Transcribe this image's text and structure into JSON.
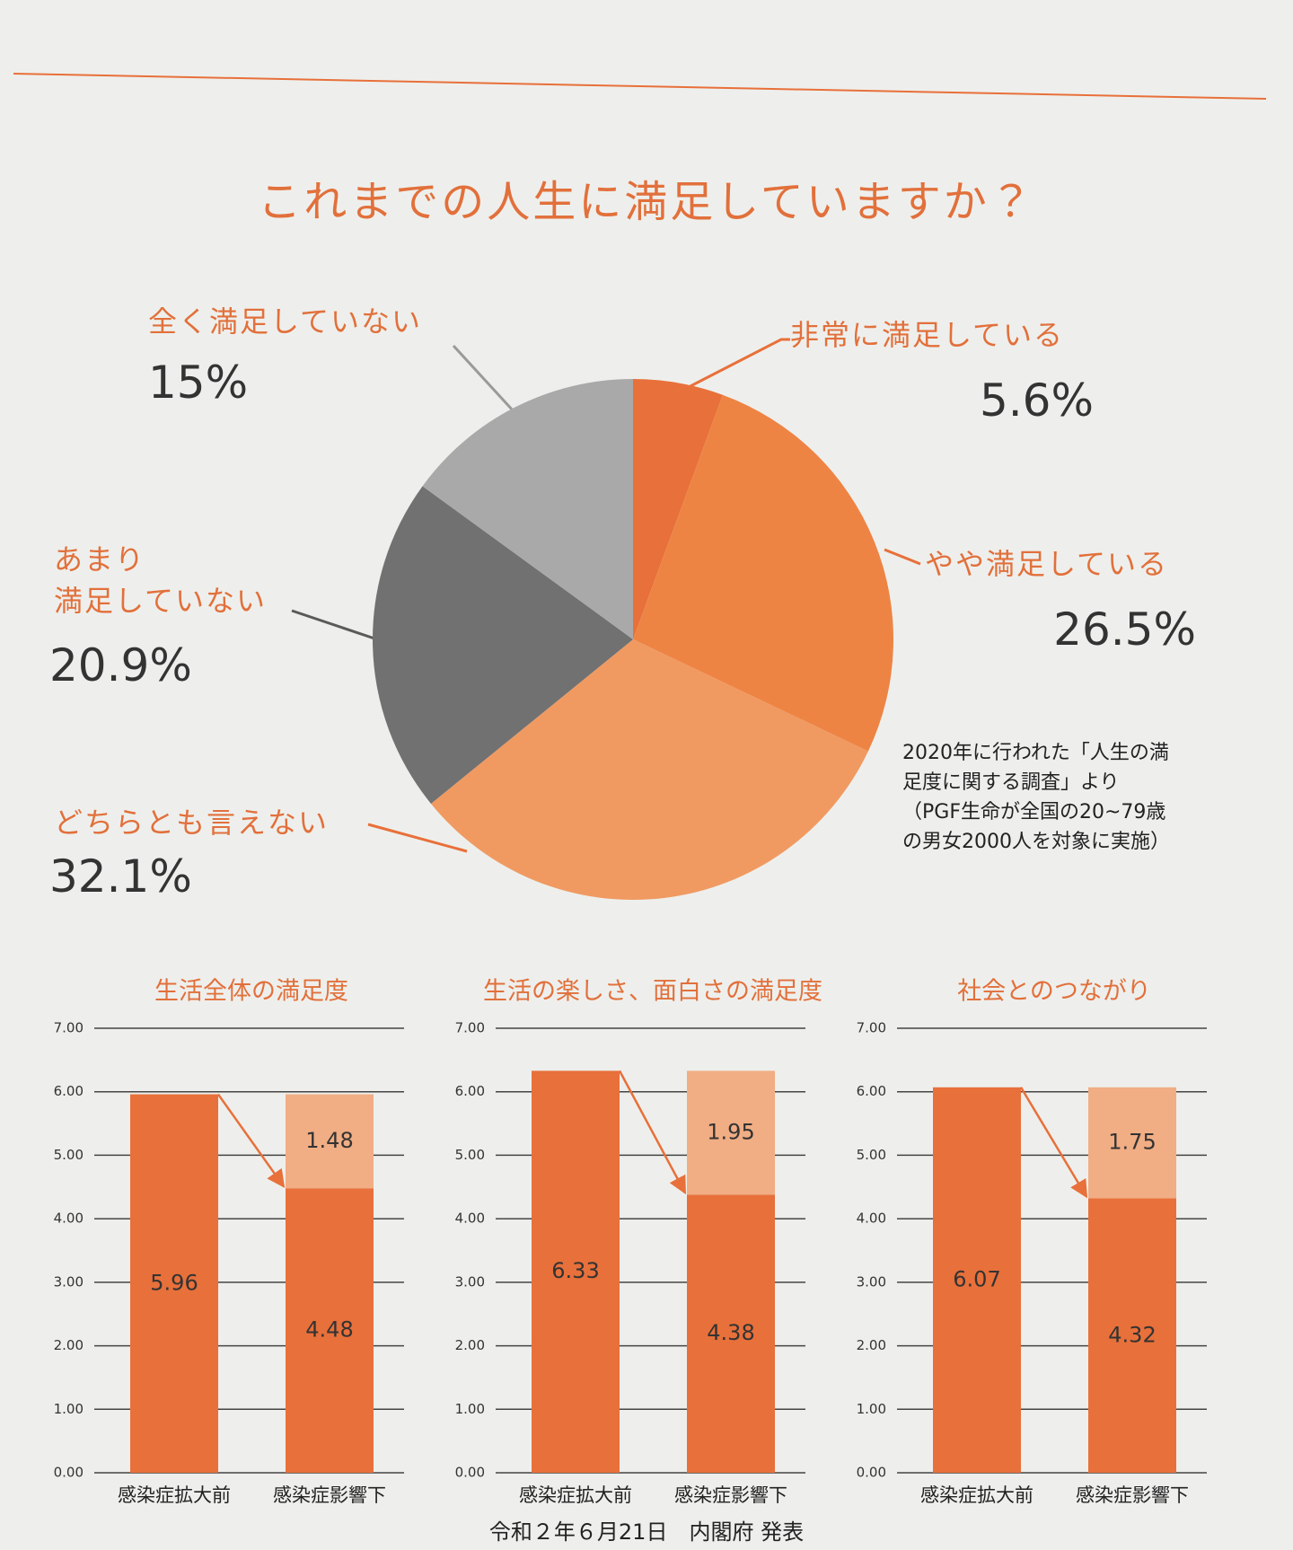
{
  "chart_data": [
    {
      "type": "pie",
      "title": "これまでの人生に満足していますか？",
      "categories": [
        "非常に満足している",
        "やや満足している",
        "どちらとも言えない",
        "あまり\n満足していない",
        "全く満足していない"
      ],
      "values": [
        5.6,
        26.5,
        32.1,
        20.9,
        15
      ],
      "value_labels": [
        "5.6%",
        "26.5%",
        "32.1%",
        "20.9%",
        "15%"
      ],
      "colors": [
        "#e8703a",
        "#ee8444",
        "#f09a62",
        "#717171",
        "#a9a9a9"
      ],
      "note": "2020年に行われた「人生の満足度に関する調査」より（PGF生命が全国の20~79歳の男女2000人を対象に実施）"
    },
    {
      "type": "bar",
      "stacked": true,
      "title": "生活全体の満足度",
      "categories": [
        "感染症拡大前",
        "感染症影響下"
      ],
      "series": [
        {
          "color": "#e8703a",
          "values": [
            5.96,
            4.48
          ]
        },
        {
          "color": "#f1ad84",
          "values": [
            null,
            1.48
          ]
        }
      ],
      "ylim": [
        0,
        7
      ],
      "yticks": [
        {
          "value": 0,
          "label": "0.00"
        },
        {
          "value": 1,
          "label": "1.00"
        },
        {
          "value": 2,
          "label": "2.00"
        },
        {
          "value": 3,
          "label": "3.00"
        },
        {
          "value": 4,
          "label": "4.00"
        },
        {
          "value": 5,
          "label": "5.00"
        },
        {
          "value": 6,
          "label": "6.00"
        },
        {
          "value": 7,
          "label": "7.00"
        }
      ],
      "grid": true
    },
    {
      "type": "bar",
      "stacked": true,
      "title": "生活の楽しさ、面白さの満足度",
      "categories": [
        "感染症拡大前",
        "感染症影響下"
      ],
      "series": [
        {
          "color": "#e8703a",
          "values": [
            6.33,
            4.38
          ]
        },
        {
          "color": "#f1ad84",
          "values": [
            null,
            1.95
          ]
        }
      ],
      "ylim": [
        0,
        7
      ],
      "yticks": [
        {
          "value": 0,
          "label": "0.00"
        },
        {
          "value": 1,
          "label": "1.00"
        },
        {
          "value": 2,
          "label": "2.00"
        },
        {
          "value": 3,
          "label": "3.00"
        },
        {
          "value": 4,
          "label": "4.00"
        },
        {
          "value": 5,
          "label": "5.00"
        },
        {
          "value": 6,
          "label": "6.00"
        },
        {
          "value": 7,
          "label": "7.00"
        }
      ],
      "grid": true
    },
    {
      "type": "bar",
      "stacked": true,
      "title": "社会とのつながり",
      "categories": [
        "感染症拡大前",
        "感染症影響下"
      ],
      "series": [
        {
          "color": "#e8703a",
          "values": [
            6.07,
            4.32
          ]
        },
        {
          "color": "#f1ad84",
          "values": [
            null,
            1.75
          ]
        }
      ],
      "ylim": [
        0,
        7
      ],
      "yticks": [
        {
          "value": 0,
          "label": "0.00"
        },
        {
          "value": 1,
          "label": "1.00"
        },
        {
          "value": 2,
          "label": "2.00"
        },
        {
          "value": 3,
          "label": "3.00"
        },
        {
          "value": 4,
          "label": "4.00"
        },
        {
          "value": 5,
          "label": "5.00"
        },
        {
          "value": 6,
          "label": "6.00"
        },
        {
          "value": 7,
          "label": "7.00"
        }
      ],
      "grid": true
    }
  ],
  "footer": {
    "source": "令和２年６月21日　内閣府 発表"
  }
}
